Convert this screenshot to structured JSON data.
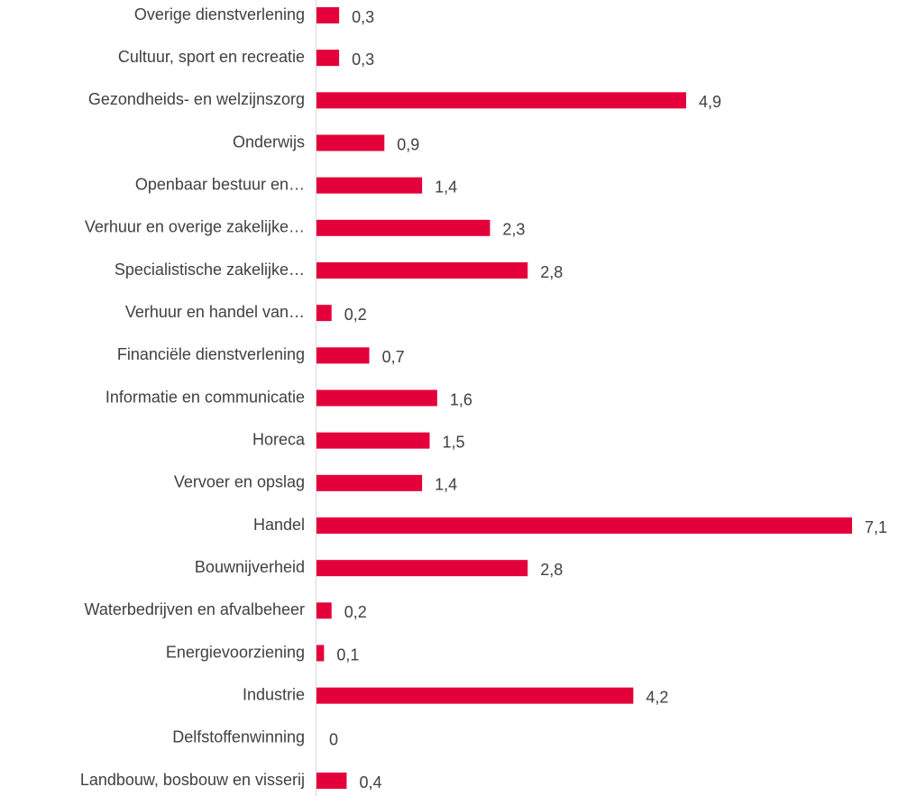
{
  "chart_data": {
    "type": "hbar",
    "color": "#e4003a",
    "categories": [
      "Overige dienstverlening",
      "Cultuur, sport en recreatie",
      "Gezondheids- en welzijnszorg",
      "Onderwijs",
      "Openbaar bestuur en…",
      "Verhuur en overige zakelijke…",
      "Specialistische zakelijke…",
      "Verhuur en handel van…",
      "Financiële dienstverlening",
      "Informatie en communicatie",
      "Horeca",
      "Vervoer en opslag",
      "Handel",
      "Bouwnijverheid",
      "Waterbedrijven en afvalbeheer",
      "Energievoorziening",
      "Industrie",
      "Delfstoffenwinning",
      "Landbouw, bosbouw en visserij"
    ],
    "values": [
      0.3,
      0.3,
      4.9,
      0.9,
      1.4,
      2.3,
      2.8,
      0.2,
      0.7,
      1.6,
      1.5,
      1.4,
      7.1,
      2.8,
      0.2,
      0.1,
      4.2,
      0,
      0.4
    ],
    "value_labels": [
      "0,3",
      "0,3",
      "4,9",
      "0,9",
      "1,4",
      "2,3",
      "2,8",
      "0,2",
      "0,7",
      "1,6",
      "1,5",
      "1,4",
      "7,1",
      "2,8",
      "0,2",
      "0,1",
      "4,2",
      "0",
      "0,4"
    ]
  }
}
